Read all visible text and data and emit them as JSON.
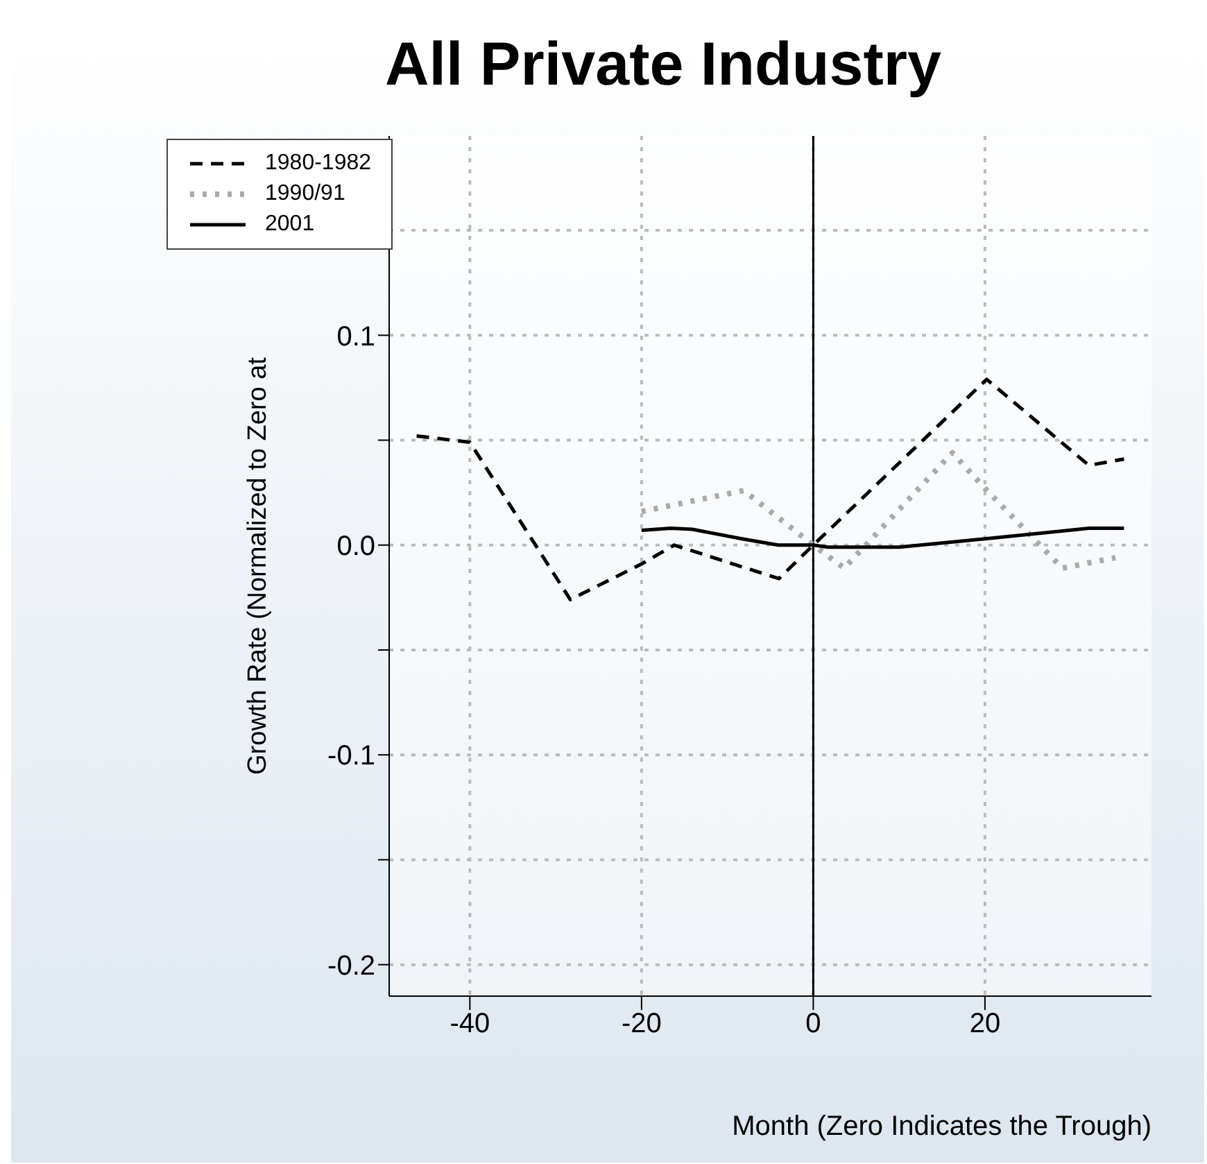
{
  "chart_data": {
    "type": "line",
    "title": "All Private Industry",
    "xlabel": "Month (Zero Indicates the Trough)",
    "ylabel": "Growth Rate (Normalized to Zero at",
    "xlim": [
      -49.4,
      39.4
    ],
    "xticks": [
      -40,
      -20,
      0,
      20
    ],
    "ylim": [
      -0.215,
      0.195
    ],
    "yticks": [
      {
        "value": -0.2,
        "label": "-0.2"
      },
      {
        "value": -0.15,
        "label": null
      },
      {
        "value": -0.1,
        "label": "-0.1"
      },
      {
        "value": -0.05,
        "label": null
      },
      {
        "value": 0,
        "label": "0.0"
      },
      {
        "value": 0.05,
        "label": null
      },
      {
        "value": 0.1,
        "label": "0.1"
      },
      {
        "value": 0.15,
        "label": null
      }
    ],
    "grid": true,
    "legend": "top left",
    "ref_lines": [
      {
        "axis": "x",
        "value": 0,
        "color": "#000000",
        "line_style": "solid"
      }
    ],
    "series": [
      {
        "name": "1980-1982",
        "color": "#000000",
        "line_style": "dashed",
        "x": [
          -46.2,
          -40,
          -28.3,
          -20,
          -16.2,
          -4,
          0,
          20.2,
          32.1,
          36.2
        ],
        "values": [
          0.052,
          0.049,
          -0.026,
          -0.009,
          0,
          -0.016,
          0,
          0.079,
          0.038,
          0.041
        ]
      },
      {
        "name": "1990/91",
        "color": "#aaaaaa",
        "line_style": "dotted",
        "x": [
          -20,
          -8.1,
          0,
          3.6,
          16.2,
          20,
          29,
          35.2
        ],
        "values": [
          0.016,
          0.026,
          0,
          -0.011,
          0.044,
          0.027,
          -0.011,
          -0.006
        ]
      },
      {
        "name": "2001",
        "color": "#000000",
        "line_style": "solid",
        "x": [
          -20,
          -16.6,
          -14.1,
          -8.3,
          -4.1,
          0,
          1.7,
          10,
          20,
          32.1,
          36.2
        ],
        "values": [
          0.007,
          0.008,
          0.0075,
          0.003,
          0,
          0,
          -0.001,
          -0.001,
          0.003,
          0.008,
          0.008
        ]
      }
    ]
  }
}
